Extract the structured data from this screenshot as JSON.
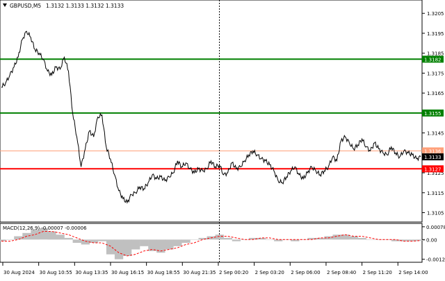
{
  "header": {
    "symbol_tf": "GBPUSD,M5",
    "ohlc": "1.3132 1.3133 1.3132 1.3133"
  },
  "colors": {
    "background": "#ffffff",
    "price_line": "#000000",
    "green_level": "#008000",
    "red_level": "#ff0000",
    "orange_level": "#ffa07a",
    "current_price_bg": "#000000",
    "macd_histogram": "#c0c0c0",
    "macd_signal": "#ff0000",
    "separator": "#808080"
  },
  "macd": {
    "label": "MACD(12,26,9) -0.00007 -0.00006",
    "ticks": [
      "0.00078",
      "0.00",
      "-0.0012"
    ]
  },
  "chart_data": [
    {
      "type": "line",
      "title": "GBPUSD,M5",
      "y_ticks": [
        "1.3205",
        "1.3195",
        "1.3185",
        "1.3175",
        "1.3165",
        "1.3145",
        "1.3125",
        "1.3115",
        "1.3105"
      ],
      "y_tick_values": [
        1.3205,
        1.3195,
        1.3185,
        1.3175,
        1.3165,
        1.3145,
        1.3125,
        1.3115,
        1.3105
      ],
      "ylim": [
        1.3101,
        1.3211
      ],
      "x_labels": [
        "30 Aug 2024",
        "30 Aug 10:55",
        "30 Aug 13:35",
        "30 Aug 16:15",
        "30 Aug 18:55",
        "30 Aug 21:35",
        "2 Sep 00:20",
        "2 Sep 03:20",
        "2 Sep 06:00",
        "2 Sep 08:40",
        "2 Sep 11:20",
        "2 Sep 14:00"
      ],
      "x_label_positions": [
        0,
        0.09,
        0.18,
        0.27,
        0.36,
        0.45,
        0.54,
        0.63,
        0.72,
        0.81,
        0.9,
        0.99
      ],
      "period_separator": 0.52,
      "horizontal_levels": [
        {
          "label": "1.3182",
          "value": 1.3182,
          "color": "#008000"
        },
        {
          "label": "1.3155",
          "value": 1.3155,
          "color": "#008000"
        },
        {
          "label": "1.3136",
          "value": 1.3136,
          "color": "#ffa07a"
        },
        {
          "label": "1.3127",
          "value": 1.3127,
          "color": "#ff0000"
        }
      ],
      "current_price": {
        "label": "1.3133",
        "value": 1.3133
      },
      "series": [
        {
          "x": [
            0,
            0.01,
            0.02,
            0.03,
            0.04,
            0.05,
            0.06,
            0.07,
            0.08,
            0.09,
            0.1,
            0.11,
            0.12,
            0.13,
            0.14,
            0.15,
            0.16,
            0.17,
            0.18,
            0.19,
            0.2,
            0.21,
            0.22,
            0.23,
            0.24,
            0.25,
            0.26,
            0.27,
            0.28,
            0.29,
            0.3,
            0.31,
            0.32,
            0.33,
            0.34,
            0.35,
            0.36,
            0.37,
            0.38,
            0.39,
            0.4,
            0.41,
            0.42,
            0.43,
            0.44,
            0.45,
            0.46,
            0.47,
            0.48,
            0.49,
            0.5,
            0.51,
            0.52,
            0.53,
            0.54,
            0.55,
            0.56,
            0.57,
            0.58,
            0.59,
            0.6,
            0.61,
            0.62,
            0.63,
            0.64,
            0.65,
            0.66,
            0.67,
            0.68,
            0.69,
            0.7,
            0.71,
            0.72,
            0.73,
            0.74,
            0.75,
            0.76,
            0.77,
            0.78,
            0.79,
            0.8,
            0.81,
            0.82,
            0.83,
            0.84,
            0.85,
            0.86,
            0.87,
            0.88,
            0.89,
            0.9,
            0.91,
            0.92,
            0.93,
            0.94,
            0.95,
            0.96,
            0.97,
            0.98,
            0.99,
            1.0
          ],
          "y": [
            1.3168,
            1.317,
            1.3174,
            1.3178,
            1.3183,
            1.3192,
            1.3196,
            1.3193,
            1.3187,
            1.3185,
            1.3182,
            1.3176,
            1.3174,
            1.3178,
            1.3177,
            1.3183,
            1.3176,
            1.3155,
            1.3143,
            1.3128,
            1.3137,
            1.3146,
            1.3143,
            1.3153,
            1.3154,
            1.3138,
            1.3132,
            1.3124,
            1.3116,
            1.3112,
            1.311,
            1.3114,
            1.3115,
            1.3118,
            1.3117,
            1.312,
            1.3124,
            1.3122,
            1.3123,
            1.3121,
            1.3123,
            1.3125,
            1.3131,
            1.3128,
            1.313,
            1.3127,
            1.3125,
            1.3127,
            1.3126,
            1.3127,
            1.3131,
            1.3128,
            1.3129,
            1.3124,
            1.3125,
            1.313,
            1.3127,
            1.3128,
            1.3131,
            1.3134,
            1.3136,
            1.3134,
            1.3132,
            1.3131,
            1.3129,
            1.3126,
            1.3121,
            1.312,
            1.3123,
            1.3126,
            1.3128,
            1.3124,
            1.3122,
            1.3125,
            1.3128,
            1.3126,
            1.3124,
            1.3126,
            1.3128,
            1.3133,
            1.3131,
            1.3141,
            1.3143,
            1.314,
            1.3137,
            1.3139,
            1.3142,
            1.3138,
            1.3136,
            1.314,
            1.3137,
            1.3135,
            1.3134,
            1.3138,
            1.3135,
            1.3133,
            1.3136,
            1.3135,
            1.3134,
            1.3132,
            1.3133
          ]
        }
      ]
    },
    {
      "type": "bar",
      "title": "MACD(12,26,9) -0.00007 -0.00006",
      "ylim": [
        -0.0013,
        0.0009
      ],
      "x": [
        0,
        0.02,
        0.04,
        0.06,
        0.08,
        0.1,
        0.12,
        0.14,
        0.16,
        0.18,
        0.2,
        0.22,
        0.24,
        0.26,
        0.28,
        0.3,
        0.32,
        0.34,
        0.36,
        0.38,
        0.4,
        0.42,
        0.44,
        0.46,
        0.48,
        0.5,
        0.52,
        0.54,
        0.56,
        0.58,
        0.6,
        0.62,
        0.64,
        0.66,
        0.68,
        0.7,
        0.72,
        0.74,
        0.76,
        0.78,
        0.8,
        0.82,
        0.84,
        0.86,
        0.88,
        0.9,
        0.92,
        0.94,
        0.96,
        0.98,
        1.0
      ],
      "histogram": [
        -0.0001,
        0.0,
        0.0002,
        0.0004,
        0.0006,
        0.0007,
        0.0005,
        0.0003,
        0.0001,
        -0.0002,
        -0.0003,
        -0.0002,
        -0.0001,
        -0.0009,
        -0.0012,
        -0.001,
        -0.0006,
        -0.0004,
        -0.0007,
        -0.0008,
        -0.0006,
        -0.0004,
        -0.0002,
        0.0,
        0.0001,
        0.0002,
        0.0003,
        0.0001,
        -0.0001,
        0.0,
        0.0001,
        0.0001,
        0.0,
        -0.0001,
        0.0,
        -0.0001,
        0.0,
        0.0001,
        0.0001,
        0.0002,
        0.0003,
        0.0003,
        0.0002,
        0.0001,
        0.0,
        0.0,
        0.0,
        -0.0001,
        -0.0001,
        -0.0001,
        -7e-05
      ],
      "signal": [
        -0.0001,
        -0.0001,
        0.0,
        0.0002,
        0.0003,
        0.0005,
        0.0005,
        0.0004,
        0.0003,
        0.0001,
        -0.0001,
        -0.0002,
        -0.0002,
        -0.0004,
        -0.0008,
        -0.001,
        -0.0009,
        -0.0007,
        -0.0006,
        -0.0007,
        -0.0006,
        -0.0005,
        -0.0003,
        -0.0002,
        0.0,
        0.0001,
        0.0002,
        0.0002,
        0.0001,
        0.0,
        0.0,
        0.0001,
        0.0001,
        0.0,
        0.0,
        0.0,
        0.0,
        0.0,
        0.0001,
        0.0001,
        0.0002,
        0.0003,
        0.0002,
        0.0002,
        0.0001,
        0.0,
        0.0,
        0.0,
        -0.0001,
        -0.0001,
        -6e-05
      ]
    }
  ]
}
